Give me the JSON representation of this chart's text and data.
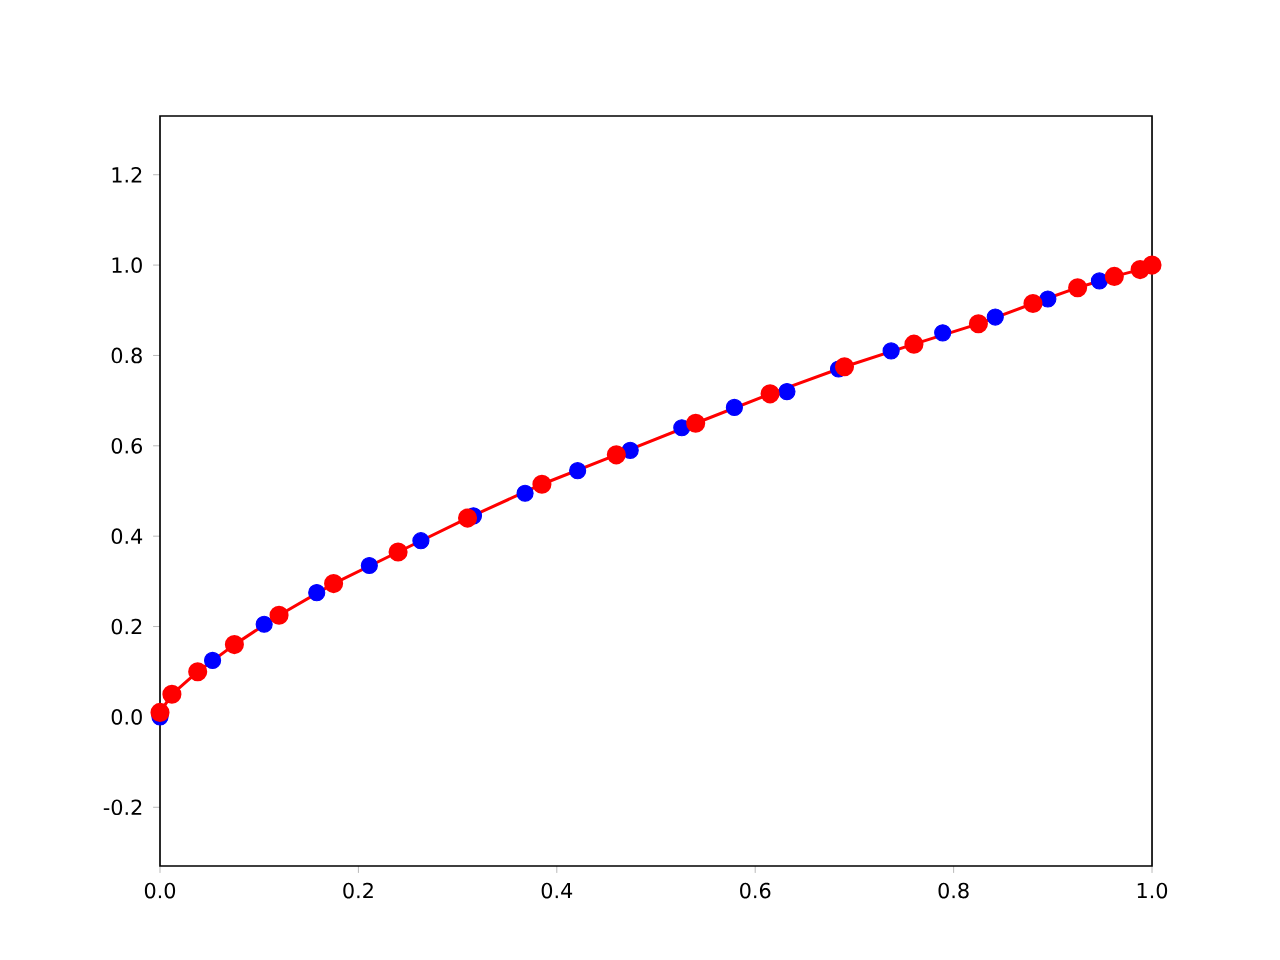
{
  "chart_data": {
    "type": "scatter",
    "xlim": [
      0,
      1
    ],
    "ylim": [
      -0.33,
      1.33
    ],
    "xticks": [
      {
        "value": 0,
        "label": "0.0"
      },
      0.2,
      0.4,
      0.6,
      0.8,
      {
        "value": 1,
        "label": "1.0"
      }
    ],
    "yticks": [
      -0.2,
      {
        "value": 0,
        "label": "0.0"
      },
      0.2,
      0.4,
      0.6,
      0.8,
      {
        "value": 1,
        "label": "1.0"
      },
      1.2
    ],
    "marker": "circle",
    "series": [
      {
        "color": "#0000ff",
        "x": [
          0,
          0.053,
          0.105,
          0.158,
          0.211,
          0.263,
          0.316,
          0.368,
          0.421,
          0.474,
          0.526,
          0.579,
          0.632,
          0.684,
          0.737,
          0.789,
          0.842,
          0.895,
          0.947
        ],
        "values": [
          0.0,
          0.125,
          0.205,
          0.275,
          0.335,
          0.39,
          0.445,
          0.495,
          0.545,
          0.59,
          0.64,
          0.685,
          0.72,
          0.77,
          0.81,
          0.85,
          0.885,
          0.925,
          0.965
        ]
      },
      {
        "type": "line",
        "color": "#ff0000",
        "x": [
          0,
          0.012,
          0.038,
          0.075,
          0.12,
          0.175,
          0.24,
          0.31,
          0.385,
          0.46,
          0.54,
          0.615,
          0.69,
          0.76,
          0.825,
          0.88,
          0.925,
          0.962,
          0.988,
          1.0
        ],
        "values": [
          0.01,
          0.05,
          0.1,
          0.16,
          0.225,
          0.295,
          0.365,
          0.44,
          0.515,
          0.58,
          0.65,
          0.715,
          0.775,
          0.825,
          0.87,
          0.915,
          0.95,
          0.975,
          0.99,
          1.0
        ]
      }
    ]
  }
}
